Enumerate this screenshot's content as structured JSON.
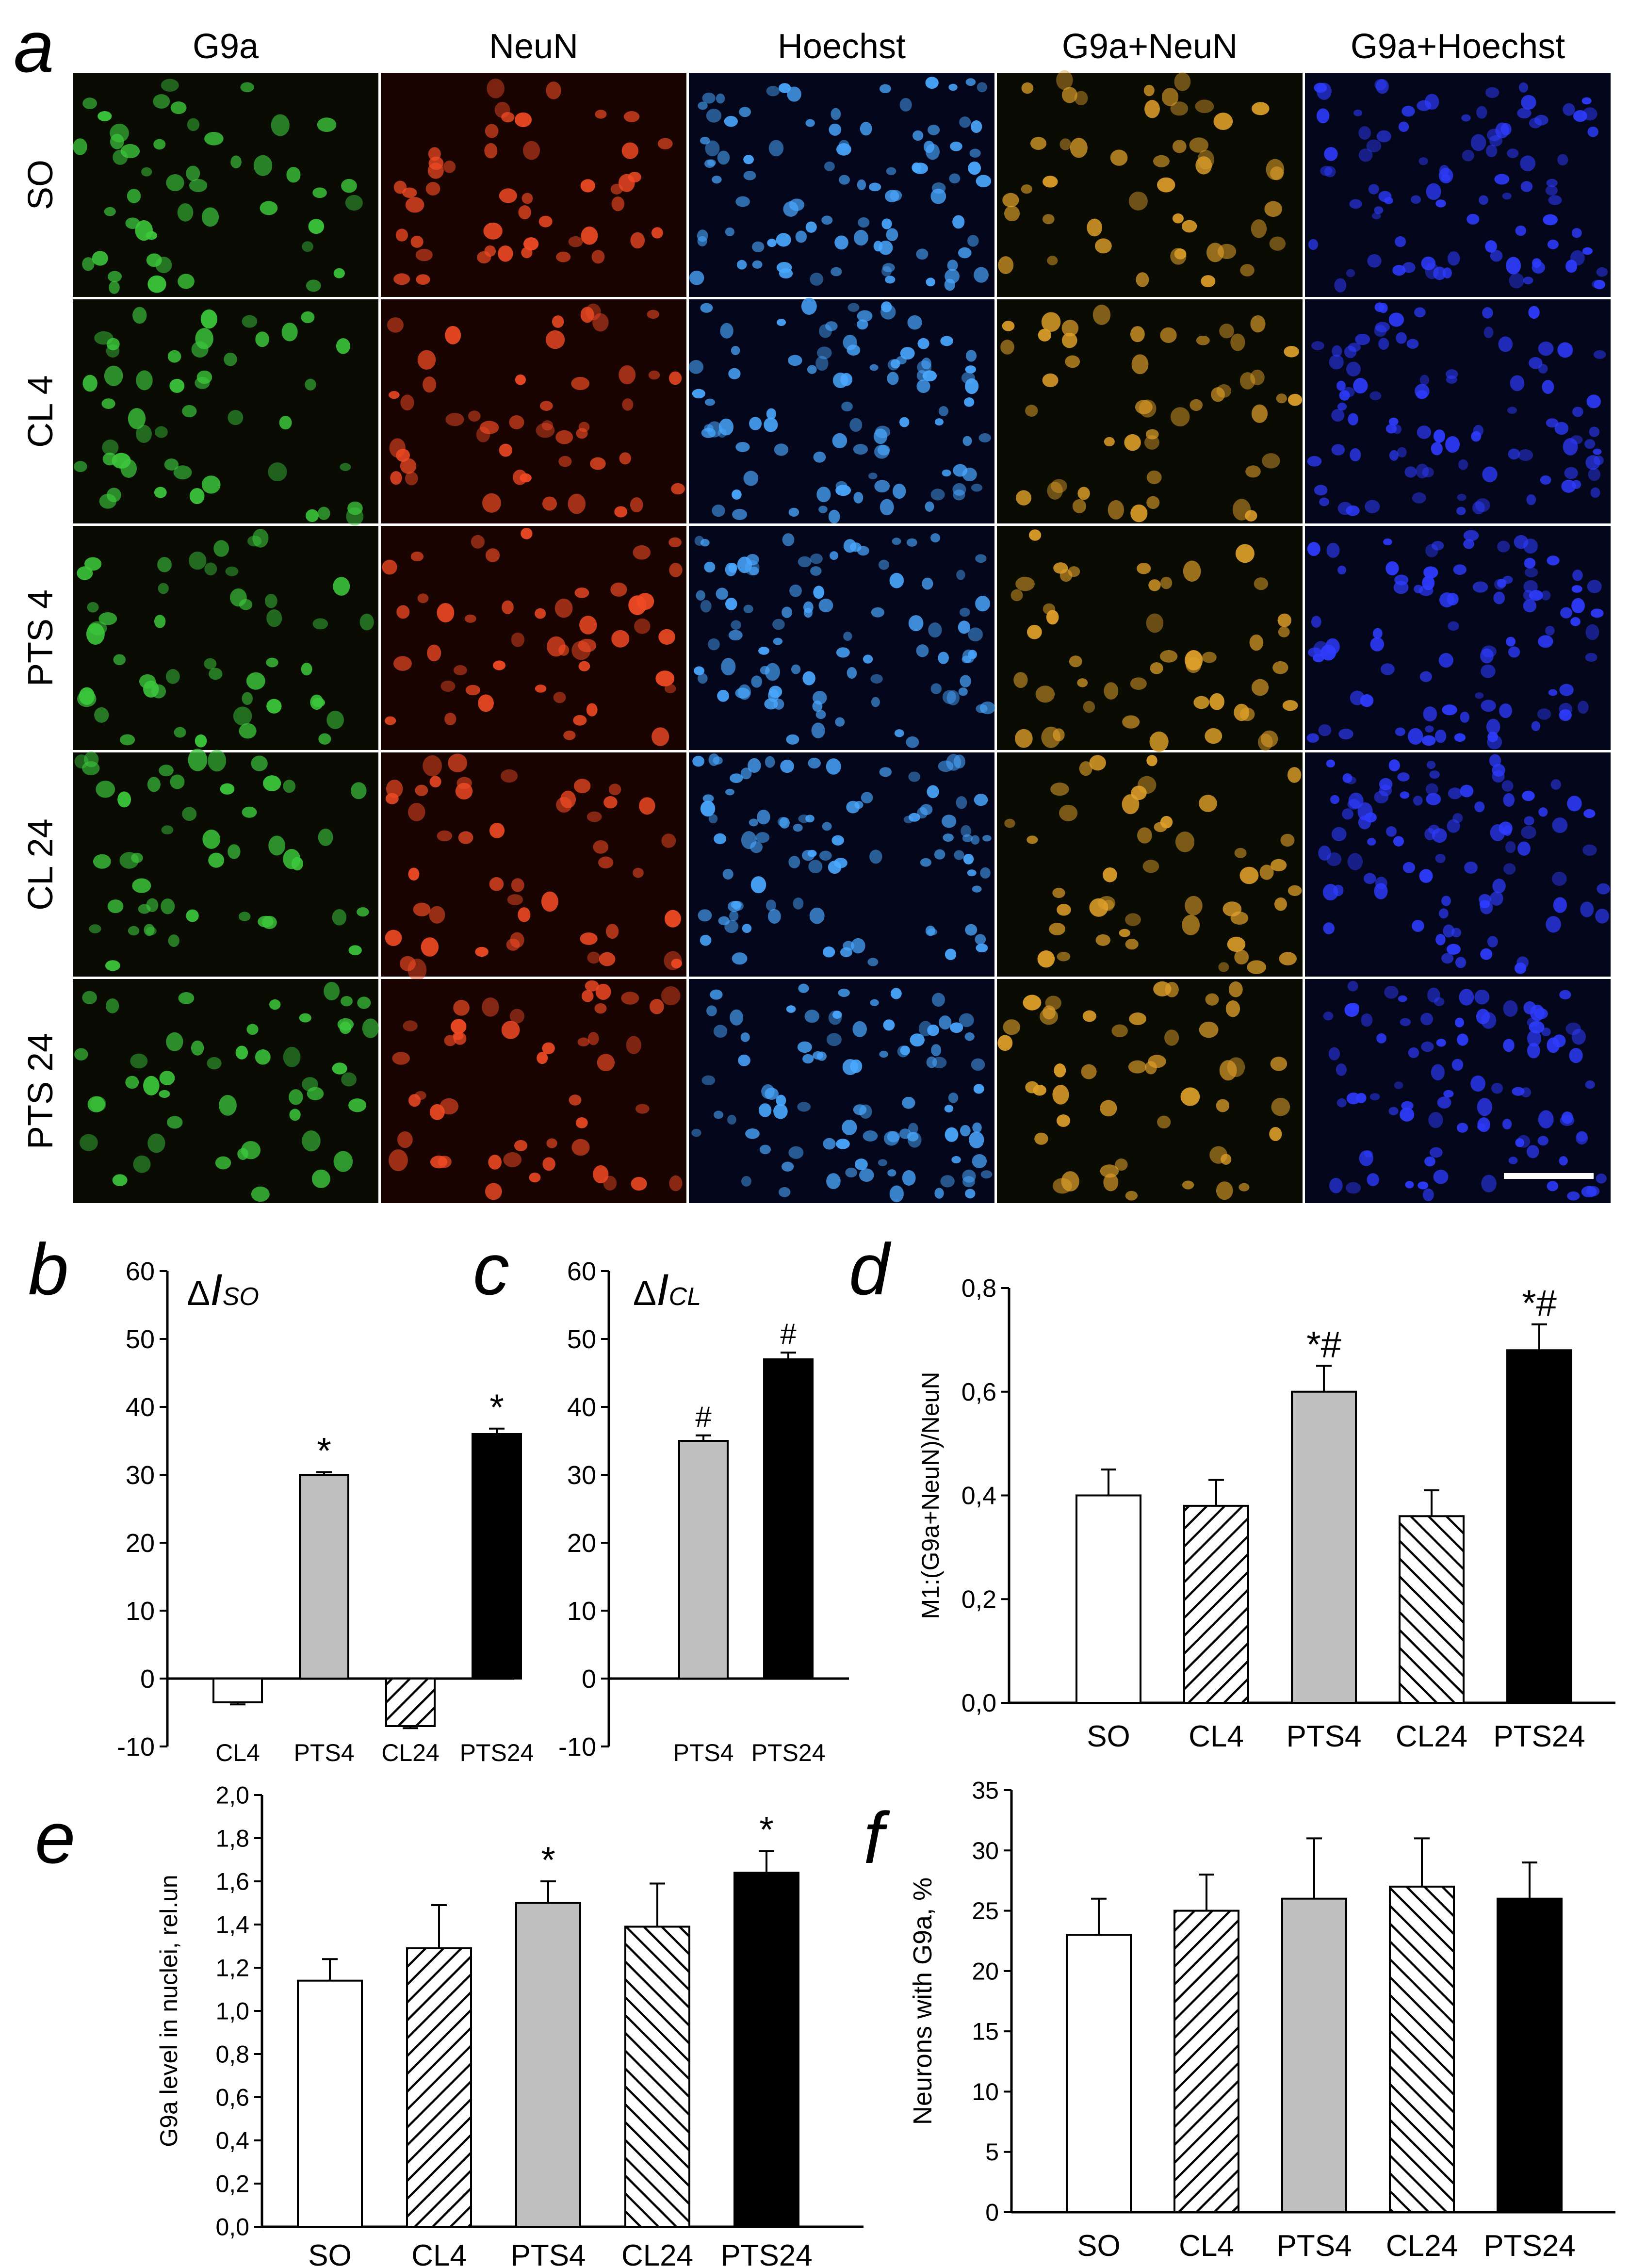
{
  "panel_letters": {
    "a": "a",
    "b": "b",
    "c": "c",
    "d": "d",
    "e": "e",
    "f": "f"
  },
  "micrographs": {
    "columns": [
      "G9a",
      "NeuN",
      "Hoechst",
      "G9a+NeuN",
      "G9a+Hoechst"
    ],
    "rows": [
      "SO",
      "CL 4",
      "PTS 4",
      "CL 24",
      "PTS 24"
    ],
    "channel_colors": {
      "G9a": "#3cc83c",
      "NeuN": "#f04a24",
      "Hoechst": "#4aa8ff",
      "G9a+NeuN": "#e0a02a",
      "G9a+Hoechst": "#2e3cff"
    },
    "scale_bar": true
  },
  "fills": {
    "open": "#ffffff",
    "hatch": "hatch",
    "grey": "#c0c0c0",
    "black": "#000000"
  },
  "chart_data": [
    {
      "panel": "b",
      "type": "bar",
      "inset_label": {
        "symbol": "Δ",
        "main": "I",
        "sub": "SO"
      },
      "ylim": [
        -10,
        60
      ],
      "yticks": [
        "60",
        "50",
        "40",
        "30",
        "20",
        "10",
        "0",
        "-10"
      ],
      "ytick_values": [
        60,
        50,
        40,
        30,
        20,
        10,
        0,
        -10
      ],
      "categories": [
        "CL4",
        "PTS4",
        "CL24",
        "PTS24"
      ],
      "values": [
        -3.5,
        30,
        -7,
        36
      ],
      "errors": [
        0.3,
        0.4,
        0.3,
        0.8
      ],
      "fills": [
        "open",
        "grey",
        "hatch",
        "black"
      ],
      "marks": [
        "",
        "*",
        "",
        "*"
      ],
      "ylabel": "",
      "xlabel": "",
      "grid": false
    },
    {
      "panel": "c",
      "type": "bar",
      "inset_label": {
        "symbol": "Δ",
        "main": "I",
        "sub": "CL"
      },
      "ylim": [
        -10,
        60
      ],
      "yticks": [
        "60",
        "50",
        "40",
        "30",
        "20",
        "10",
        "0",
        "-10"
      ],
      "ytick_values": [
        60,
        50,
        40,
        30,
        20,
        10,
        0,
        -10
      ],
      "categories": [
        "PTS4",
        "PTS24"
      ],
      "values": [
        35,
        47
      ],
      "errors": [
        0.8,
        1.0
      ],
      "fills": [
        "grey",
        "black"
      ],
      "marks": [
        "#",
        "#"
      ],
      "ylabel": "",
      "xlabel": "",
      "grid": false
    },
    {
      "panel": "d",
      "type": "bar",
      "ylim": [
        0,
        0.8
      ],
      "yticks": [
        "0,8",
        "0,6",
        "0,4",
        "0,2",
        "0,0"
      ],
      "ytick_values": [
        0.8,
        0.6,
        0.4,
        0.2,
        0
      ],
      "categories": [
        "SO",
        "CL4",
        "PTS4",
        "CL24",
        "PTS24"
      ],
      "values": [
        0.4,
        0.38,
        0.6,
        0.36,
        0.68
      ],
      "errors": [
        0.05,
        0.05,
        0.05,
        0.05,
        0.05
      ],
      "fills": [
        "open",
        "hatch",
        "grey",
        "hatch",
        "black"
      ],
      "marks": [
        "",
        "",
        "*#",
        "",
        "*#"
      ],
      "ylabel": "M1:(G9a+NeuN)/NeuN",
      "xlabel": "",
      "grid": false
    },
    {
      "panel": "e",
      "type": "bar",
      "ylim": [
        0,
        2.0
      ],
      "yticks": [
        "2,0",
        "1,8",
        "1,6",
        "1,4",
        "1,2",
        "1,0",
        "0,8",
        "0,6",
        "0,4",
        "0,2",
        "0,0"
      ],
      "ytick_values": [
        2.0,
        1.8,
        1.6,
        1.4,
        1.2,
        1.0,
        0.8,
        0.6,
        0.4,
        0.2,
        0
      ],
      "categories": [
        "SO",
        "CL4",
        "PTS4",
        "CL24",
        "PTS24"
      ],
      "values": [
        1.14,
        1.29,
        1.5,
        1.39,
        1.64
      ],
      "errors": [
        0.1,
        0.2,
        0.1,
        0.2,
        0.1
      ],
      "fills": [
        "open",
        "hatch",
        "grey",
        "hatch",
        "black"
      ],
      "marks": [
        "",
        "",
        "*",
        "",
        "*"
      ],
      "ylabel": "G9a level in nuclei, rel.un",
      "xlabel": "",
      "grid": false
    },
    {
      "panel": "f",
      "type": "bar",
      "ylim": [
        0,
        35
      ],
      "yticks": [
        "35",
        "30",
        "25",
        "20",
        "15",
        "10",
        "5",
        "0"
      ],
      "ytick_values": [
        35,
        30,
        25,
        20,
        15,
        10,
        5,
        0
      ],
      "categories": [
        "SO",
        "CL4",
        "PTS4",
        "CL24",
        "PTS24"
      ],
      "values": [
        23,
        25,
        26,
        27,
        26
      ],
      "errors": [
        3,
        3,
        5,
        4,
        3
      ],
      "fills": [
        "open",
        "hatch",
        "grey",
        "hatch",
        "black"
      ],
      "marks": [
        "",
        "",
        "",
        "",
        ""
      ],
      "ylabel": "Neurons with G9a, %",
      "xlabel": "",
      "grid": false
    }
  ]
}
